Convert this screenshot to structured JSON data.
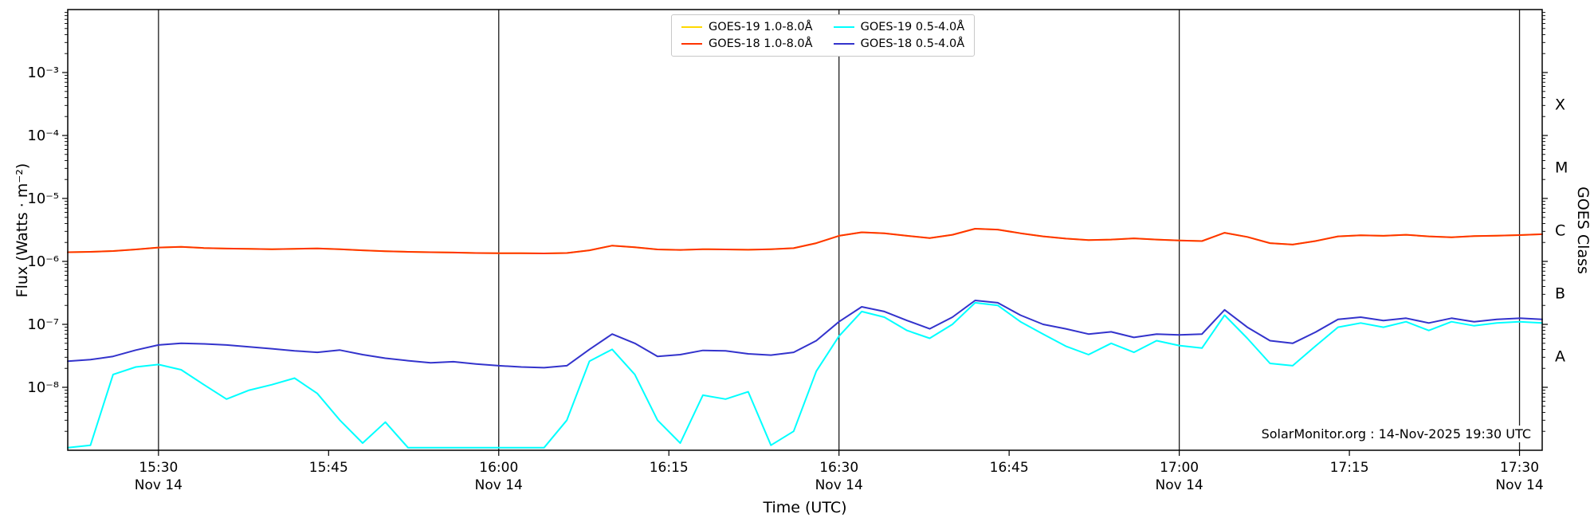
{
  "chart_data": {
    "type": "line",
    "title": "",
    "xlabel": "Time (UTC)",
    "ylabel": "Flux (Watts · m⁻²)",
    "ylabel_right": "GOES Class",
    "annotation": "SolarMonitor.org : 14-Nov-2025 19:30 UTC",
    "y_scale": "log",
    "ylim": [
      1e-09,
      0.01
    ],
    "x_unit": "minutes after 15:00 UTC, 14 Nov 2025",
    "xlim": [
      22,
      152
    ],
    "grid": "vertical lines at 30-minute major ticks",
    "legend_position": "top center",
    "x_ticks": [
      {
        "t": 30,
        "label": "15:30",
        "sub": "Nov 14",
        "major": true
      },
      {
        "t": 45,
        "label": "15:45",
        "major": false
      },
      {
        "t": 60,
        "label": "16:00",
        "sub": "Nov 14",
        "major": true
      },
      {
        "t": 75,
        "label": "16:15",
        "major": false
      },
      {
        "t": 90,
        "label": "16:30",
        "sub": "Nov 14",
        "major": true
      },
      {
        "t": 105,
        "label": "16:45",
        "major": false
      },
      {
        "t": 120,
        "label": "17:00",
        "sub": "Nov 14",
        "major": true
      },
      {
        "t": 135,
        "label": "17:15",
        "major": false
      },
      {
        "t": 150,
        "label": "17:30",
        "sub": "Nov 14",
        "major": true
      }
    ],
    "y_ticks": [
      {
        "exp": -3,
        "label": "10⁻³"
      },
      {
        "exp": -4,
        "label": "10⁻⁴"
      },
      {
        "exp": -5,
        "label": "10⁻⁵"
      },
      {
        "exp": -6,
        "label": "10⁻⁶"
      },
      {
        "exp": -7,
        "label": "10⁻⁷"
      },
      {
        "exp": -8,
        "label": "10⁻⁸"
      }
    ],
    "goes_classes": [
      {
        "label": "X",
        "log_center": -3.5
      },
      {
        "label": "M",
        "log_center": -4.5
      },
      {
        "label": "C",
        "log_center": -5.5
      },
      {
        "label": "B",
        "log_center": -6.5
      },
      {
        "label": "A",
        "log_center": -7.5
      }
    ],
    "x": [
      22,
      24,
      26,
      28,
      30,
      32,
      34,
      36,
      38,
      40,
      42,
      44,
      46,
      48,
      50,
      52,
      54,
      56,
      58,
      60,
      62,
      64,
      66,
      68,
      70,
      72,
      74,
      76,
      78,
      80,
      82,
      84,
      86,
      88,
      90,
      92,
      94,
      96,
      98,
      100,
      102,
      104,
      106,
      108,
      110,
      112,
      114,
      116,
      118,
      120,
      122,
      124,
      126,
      128,
      130,
      132,
      134,
      136,
      138,
      140,
      142,
      144,
      146,
      148,
      150,
      152
    ],
    "series": [
      {
        "id": "goes19-long",
        "name": "GOES-19 1.0-8.0Å",
        "color": "#ffd900",
        "y": [
          1.4e-06,
          1.42e-06,
          1.46e-06,
          1.55e-06,
          1.66e-06,
          1.7e-06,
          1.63e-06,
          1.6e-06,
          1.58e-06,
          1.56e-06,
          1.58e-06,
          1.61e-06,
          1.56e-06,
          1.5e-06,
          1.45e-06,
          1.42e-06,
          1.4e-06,
          1.38e-06,
          1.36e-06,
          1.35e-06,
          1.35e-06,
          1.34e-06,
          1.36e-06,
          1.5e-06,
          1.78e-06,
          1.68e-06,
          1.55e-06,
          1.52e-06,
          1.56e-06,
          1.55e-06,
          1.53e-06,
          1.56e-06,
          1.62e-06,
          1.95e-06,
          2.55e-06,
          2.9e-06,
          2.8e-06,
          2.55e-06,
          2.35e-06,
          2.65e-06,
          3.3e-06,
          3.2e-06,
          2.8e-06,
          2.5e-06,
          2.3e-06,
          2.18e-06,
          2.22e-06,
          2.32e-06,
          2.22e-06,
          2.15e-06,
          2.1e-06,
          2.85e-06,
          2.45e-06,
          1.95e-06,
          1.85e-06,
          2.1e-06,
          2.5e-06,
          2.6e-06,
          2.55e-06,
          2.65e-06,
          2.5e-06,
          2.42e-06,
          2.52e-06,
          2.56e-06,
          2.62e-06,
          2.7e-06
        ]
      },
      {
        "id": "goes18-long",
        "name": "GOES-18 1.0-8.0Å",
        "color": "#ff3300",
        "y": [
          1.4e-06,
          1.42e-06,
          1.46e-06,
          1.55e-06,
          1.66e-06,
          1.7e-06,
          1.63e-06,
          1.6e-06,
          1.58e-06,
          1.56e-06,
          1.58e-06,
          1.61e-06,
          1.56e-06,
          1.5e-06,
          1.45e-06,
          1.42e-06,
          1.4e-06,
          1.38e-06,
          1.36e-06,
          1.35e-06,
          1.35e-06,
          1.34e-06,
          1.36e-06,
          1.5e-06,
          1.78e-06,
          1.68e-06,
          1.55e-06,
          1.52e-06,
          1.56e-06,
          1.55e-06,
          1.53e-06,
          1.56e-06,
          1.62e-06,
          1.95e-06,
          2.55e-06,
          2.9e-06,
          2.8e-06,
          2.55e-06,
          2.35e-06,
          2.65e-06,
          3.3e-06,
          3.2e-06,
          2.8e-06,
          2.5e-06,
          2.3e-06,
          2.18e-06,
          2.22e-06,
          2.32e-06,
          2.22e-06,
          2.15e-06,
          2.1e-06,
          2.85e-06,
          2.45e-06,
          1.95e-06,
          1.85e-06,
          2.1e-06,
          2.5e-06,
          2.6e-06,
          2.55e-06,
          2.65e-06,
          2.5e-06,
          2.42e-06,
          2.52e-06,
          2.56e-06,
          2.62e-06,
          2.7e-06
        ]
      },
      {
        "id": "goes19-short",
        "name": "GOES-19 0.5-4.0Å",
        "color": "#00ffff",
        "y": [
          1.1e-09,
          1.2e-09,
          1.6e-08,
          2.1e-08,
          2.3e-08,
          1.9e-08,
          1.1e-08,
          6.5e-09,
          9e-09,
          1.1e-08,
          1.4e-08,
          8e-09,
          3e-09,
          1.3e-09,
          2.8e-09,
          1.1e-09,
          1.1e-09,
          1.1e-09,
          1.1e-09,
          1.1e-09,
          1.1e-09,
          1.1e-09,
          3e-09,
          2.6e-08,
          4e-08,
          1.6e-08,
          3e-09,
          1.3e-09,
          7.5e-09,
          6.5e-09,
          8.5e-09,
          1.2e-09,
          2e-09,
          1.8e-08,
          6.5e-08,
          1.6e-07,
          1.3e-07,
          8e-08,
          6e-08,
          1e-07,
          2.2e-07,
          2e-07,
          1.1e-07,
          7e-08,
          4.5e-08,
          3.3e-08,
          5e-08,
          3.6e-08,
          5.5e-08,
          4.6e-08,
          4.2e-08,
          1.4e-07,
          6e-08,
          2.4e-08,
          2.2e-08,
          4.5e-08,
          9e-08,
          1.05e-07,
          9e-08,
          1.1e-07,
          8e-08,
          1.1e-07,
          9.5e-08,
          1.05e-07,
          1.1e-07,
          1.05e-07
        ]
      },
      {
        "id": "goes18-short",
        "name": "GOES-18 0.5-4.0Å",
        "color": "#3333cc",
        "y": [
          2.6e-08,
          2.75e-08,
          3.1e-08,
          3.9e-08,
          4.7e-08,
          5e-08,
          4.9e-08,
          4.7e-08,
          4.4e-08,
          4.1e-08,
          3.8e-08,
          3.6e-08,
          3.9e-08,
          3.3e-08,
          2.9e-08,
          2.65e-08,
          2.45e-08,
          2.55e-08,
          2.35e-08,
          2.2e-08,
          2.1e-08,
          2.05e-08,
          2.2e-08,
          4e-08,
          7e-08,
          5e-08,
          3.1e-08,
          3.3e-08,
          3.85e-08,
          3.8e-08,
          3.4e-08,
          3.25e-08,
          3.6e-08,
          5.5e-08,
          1.1e-07,
          1.9e-07,
          1.6e-07,
          1.15e-07,
          8.5e-08,
          1.3e-07,
          2.4e-07,
          2.2e-07,
          1.4e-07,
          1e-07,
          8.5e-08,
          7e-08,
          7.6e-08,
          6.2e-08,
          7e-08,
          6.8e-08,
          7e-08,
          1.7e-07,
          9e-08,
          5.5e-08,
          5e-08,
          7.5e-08,
          1.2e-07,
          1.3e-07,
          1.15e-07,
          1.25e-07,
          1.05e-07,
          1.25e-07,
          1.1e-07,
          1.2e-07,
          1.25e-07,
          1.2e-07
        ]
      }
    ]
  }
}
